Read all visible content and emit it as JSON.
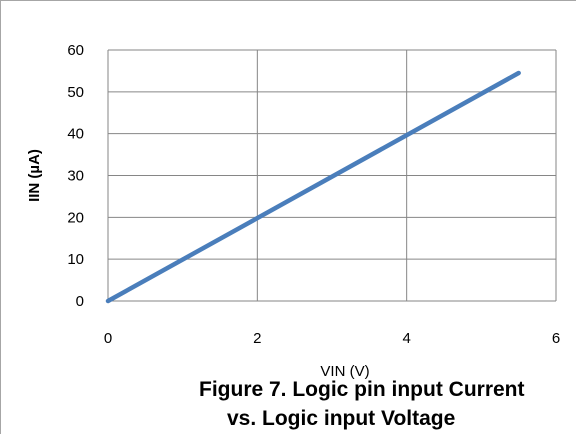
{
  "chart_data": {
    "type": "line",
    "title": "",
    "xlabel": "VIN (V)",
    "ylabel": "IIN (µA)",
    "xlim": [
      0,
      6
    ],
    "ylim": [
      0,
      60
    ],
    "x_ticks": [
      "0",
      "2",
      "4",
      "6"
    ],
    "y_ticks": [
      "0",
      "10",
      "20",
      "30",
      "40",
      "50",
      "60"
    ],
    "grid": true,
    "legend": "none",
    "series": [
      {
        "color": "#4a7ebb",
        "points": [
          [
            0,
            0
          ],
          [
            5.5,
            54.5
          ]
        ]
      }
    ]
  },
  "caption": {
    "line1": "Figure 7.  Logic pin input Current",
    "line2": "vs. Logic input  Voltage"
  },
  "colors": {
    "grid": "#868686",
    "series": "#4a7ebb"
  }
}
